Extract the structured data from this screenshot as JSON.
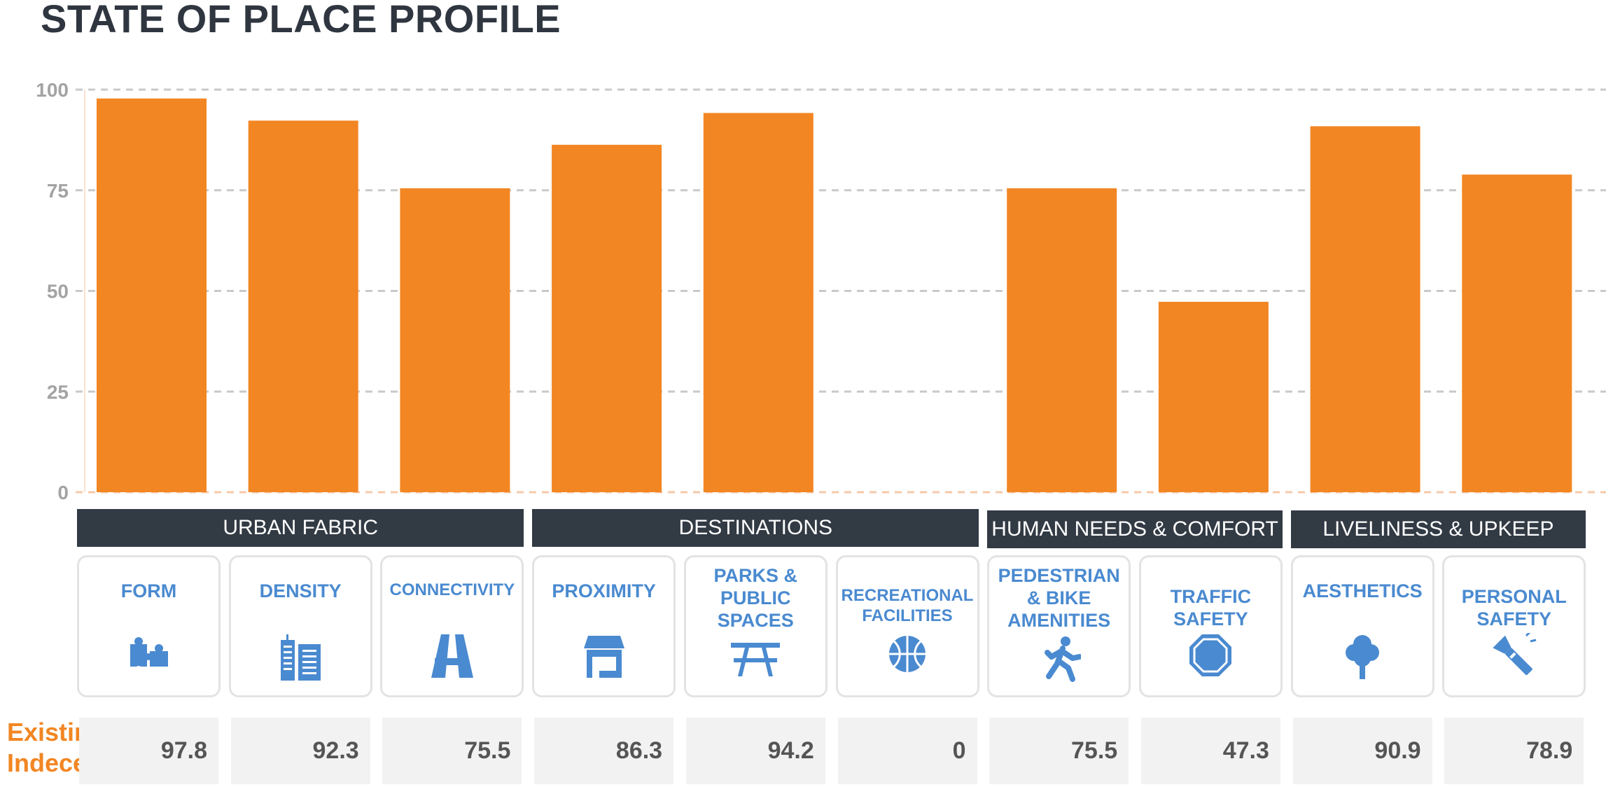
{
  "title": "STATE OF PLACE PROFILE",
  "accent_color": "#f28623",
  "icon_color": "#4a8ad0",
  "header_color": "#323a44",
  "chart_data": {
    "type": "bar",
    "ylim": [
      0,
      100
    ],
    "yticks": [
      "0",
      "25",
      "50",
      "75",
      "100"
    ],
    "grid": true,
    "categories": [
      "FORM",
      "DENSITY",
      "CONNECTIVITY",
      "PROXIMITY",
      "PARKS & PUBLIC SPACES",
      "RECREATIONAL FACILITIES",
      "PEDESTRIAN & BIKE AMENITIES",
      "TRAFFIC SAFETY",
      "AESTHETICS",
      "PERSONAL SAFETY"
    ],
    "values": [
      97.8,
      92.3,
      75.5,
      86.3,
      94.2,
      0,
      75.5,
      47.3,
      90.9,
      78.9
    ],
    "value_labels": [
      "97.8",
      "92.3",
      "75.5",
      "86.3",
      "94.2",
      "0",
      "75.5",
      "47.3",
      "90.9",
      "78.9"
    ],
    "groups": [
      {
        "name": "URBAN FABRIC",
        "count": 3
      },
      {
        "name": "DESTINATIONS",
        "count": 3
      },
      {
        "name": "HUMAN NEEDS & COMFORT",
        "count": 2
      },
      {
        "name": "LIVELINESS & UPKEEP",
        "count": 2
      }
    ],
    "icons": [
      "puzzle-icon",
      "buildings-icon",
      "road-icon",
      "storefront-icon",
      "picnic-table-icon",
      "basketball-icon",
      "pedestrian-icon",
      "stop-sign-icon",
      "tree-icon",
      "flashlight-icon"
    ]
  },
  "index_row_label": "Existing Indeces"
}
